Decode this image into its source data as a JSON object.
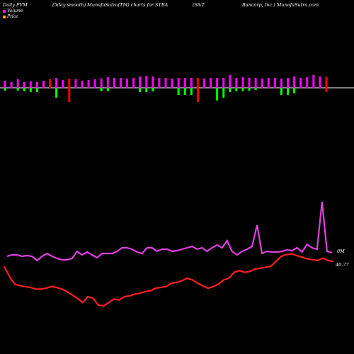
{
  "header": {
    "left": "Daily PVM",
    "mid": "(5day smooth) MunafaSutra(TM) charts for STBA",
    "company_a": "(S&T",
    "company_b": "Bancorp, Inc.) MunafaSutra.com"
  },
  "legend": [
    {
      "label": "Volume",
      "color": "#ff00ff"
    },
    {
      "label": "Price",
      "color": "#ffa500"
    }
  ],
  "colors": {
    "background": "#000000",
    "volume_up": "#ff00ff",
    "volume_down": "#00ff00",
    "volume_red": "#ff0000",
    "baseline": "#ffffff",
    "volume_line": "#e040e0",
    "price_line": "#ff2020"
  },
  "chart_data": {
    "type": "bar+line",
    "title": "Daily PVM (5day smooth) MunafaSutra(TM) charts for STBA",
    "series": [
      {
        "name": "Volume",
        "values": [
          10,
          8,
          12,
          8,
          9,
          8,
          10,
          12,
          14,
          11,
          13,
          12,
          10,
          11,
          12,
          13,
          15,
          14,
          14,
          13,
          14,
          16,
          17,
          16,
          14,
          14,
          13,
          14,
          14,
          14,
          14,
          13,
          14,
          14,
          14,
          18,
          14,
          15,
          14,
          14,
          13,
          14,
          14,
          13,
          14,
          16,
          14,
          15,
          18,
          16,
          15
        ],
        "colors": [
          "#ff00ff",
          "#ff00ff",
          "#ff00ff",
          "#ff00ff",
          "#ff00ff",
          "#ff00ff",
          "#ff00ff",
          "#ff0000",
          "#ff00ff",
          "#ff00ff",
          "#ff0000",
          "#ff00ff",
          "#ff00ff",
          "#ff00ff",
          "#ff00ff",
          "#ff00ff",
          "#ff00ff",
          "#ff00ff",
          "#ff00ff",
          "#ff00ff",
          "#ff00ff",
          "#ff00ff",
          "#ff00ff",
          "#ff00ff",
          "#ff00ff",
          "#ff00ff",
          "#ff00ff",
          "#ff00ff",
          "#ff00ff",
          "#ff00ff",
          "#ff0000",
          "#ff00ff",
          "#ff00ff",
          "#ff00ff",
          "#ff00ff",
          "#ff00ff",
          "#ff00ff",
          "#ff00ff",
          "#ff00ff",
          "#ff00ff",
          "#ff00ff",
          "#ff00ff",
          "#ff00ff",
          "#ff00ff",
          "#ff00ff",
          "#ff00ff",
          "#ff00ff",
          "#ff00ff",
          "#ff00ff",
          "#ff00ff",
          "#ff0000"
        ]
      },
      {
        "name": "Volume (down)",
        "values": [
          4,
          0,
          4,
          5,
          6,
          6,
          0,
          0,
          14,
          0,
          20,
          0,
          0,
          0,
          0,
          5,
          5,
          0,
          0,
          0,
          0,
          6,
          6,
          5,
          0,
          0,
          0,
          10,
          10,
          10,
          20,
          0,
          0,
          18,
          14,
          6,
          5,
          5,
          4,
          3,
          0,
          0,
          0,
          10,
          10,
          8,
          0,
          0,
          0,
          0,
          6
        ],
        "colors": [
          "#00ff00",
          "#00ff00",
          "#00ff00",
          "#00ff00",
          "#00ff00",
          "#00ff00",
          "#00ff00",
          "#00ff00",
          "#00ff00",
          "#00ff00",
          "#ff0000",
          "#00ff00",
          "#00ff00",
          "#00ff00",
          "#00ff00",
          "#00ff00",
          "#00ff00",
          "#00ff00",
          "#00ff00",
          "#00ff00",
          "#00ff00",
          "#00ff00",
          "#00ff00",
          "#00ff00",
          "#00ff00",
          "#00ff00",
          "#00ff00",
          "#00ff00",
          "#00ff00",
          "#00ff00",
          "#ff0000",
          "#00ff00",
          "#00ff00",
          "#00ff00",
          "#00ff00",
          "#00ff00",
          "#00ff00",
          "#00ff00",
          "#00ff00",
          "#00ff00",
          "#00ff00",
          "#00ff00",
          "#00ff00",
          "#00ff00",
          "#00ff00",
          "#00ff00",
          "#00ff00",
          "#00ff00",
          "#00ff00",
          "#00ff00",
          "#ff0000"
        ]
      },
      {
        "name": "Volume line",
        "values": [
          362,
          360,
          360,
          362,
          361,
          362,
          368,
          362,
          358,
          362,
          365,
          367,
          367,
          365,
          355,
          360,
          356,
          360,
          364,
          358,
          358,
          358,
          355,
          350,
          350,
          352,
          356,
          358,
          350,
          350,
          355,
          352,
          352,
          355,
          354,
          352,
          350,
          348,
          352,
          350,
          355,
          350,
          346,
          350,
          340,
          355,
          360,
          355,
          352,
          348,
          318,
          358,
          355,
          356,
          356,
          355,
          353,
          354,
          350,
          356,
          345,
          350,
          352,
          285,
          355,
          357
        ]
      },
      {
        "name": "Price line",
        "values": [
          40.2,
          39.0,
          38.1,
          37.9,
          37.8,
          37.7,
          37.5,
          37.5,
          37.6,
          37.8,
          37.7,
          37.5,
          37.2,
          36.8,
          36.4,
          35.9,
          36.6,
          36.4,
          35.6,
          35.5,
          35.9,
          36.3,
          36.2,
          36.6,
          36.7,
          36.9,
          37.0,
          37.2,
          37.3,
          37.6,
          37.7,
          37.8,
          38.2,
          38.3,
          38.5,
          38.8,
          38.6,
          38.2,
          37.9,
          37.6,
          37.8,
          38.1,
          38.6,
          38.8,
          39.5,
          39.7,
          39.5,
          39.6,
          39.9,
          40.0,
          40.1,
          40.2,
          40.8,
          41.4,
          41.6,
          41.7,
          41.5,
          41.3,
          41.1,
          41.0,
          40.9,
          41.2,
          40.9,
          40.8
        ]
      }
    ],
    "labels": {
      "volume_end": "0M",
      "price_end": "40.77"
    }
  }
}
